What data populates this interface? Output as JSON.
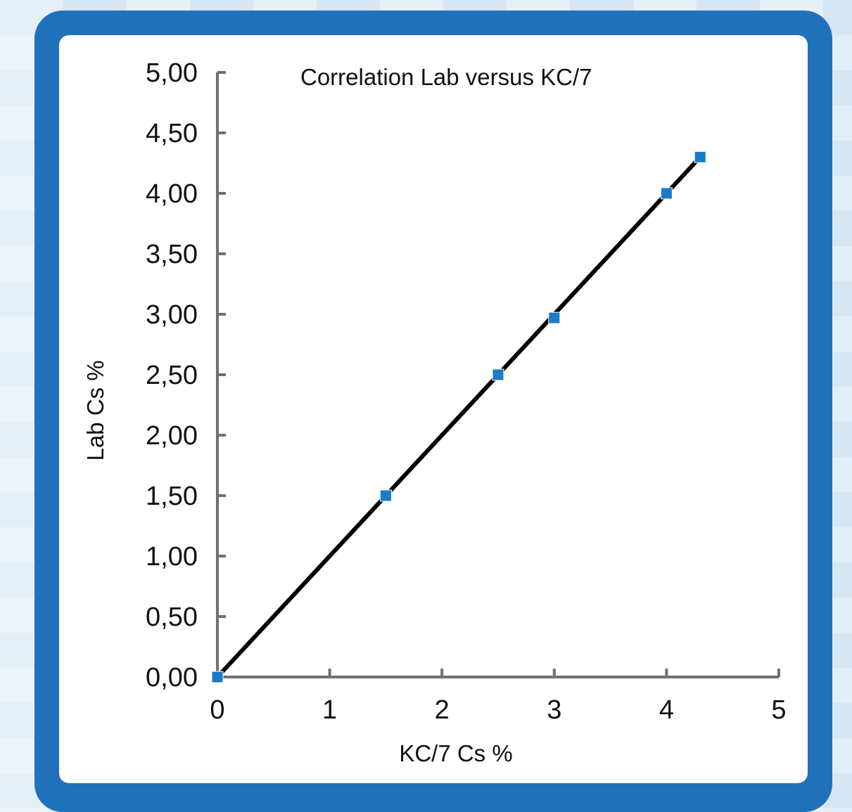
{
  "chart_data": {
    "type": "scatter",
    "title": "Correlation Lab versus KC/7",
    "xlabel": "KC/7 Cs %",
    "ylabel": "Lab Cs %",
    "xlim": [
      0,
      5
    ],
    "ylim": [
      0,
      5
    ],
    "xticks": [
      "0",
      "1",
      "2",
      "3",
      "4",
      "5"
    ],
    "yticks": [
      "0,00",
      "0,50",
      "1,00",
      "1,50",
      "2,00",
      "2,50",
      "3,00",
      "3,50",
      "4,00",
      "4,50",
      "5,00"
    ],
    "grid": false,
    "legend": "none",
    "series": [
      {
        "x": [
          0,
          1.5,
          2.5,
          3.0,
          4.0,
          4.3
        ],
        "y": [
          0,
          1.5,
          2.5,
          2.97,
          4.0,
          4.3
        ],
        "marker": "square",
        "color": "#1a7bc8"
      }
    ],
    "trendline": {
      "x": [
        0,
        4.3
      ],
      "y": [
        0,
        4.3
      ],
      "color": "#000000"
    }
  },
  "colors": {
    "frame": "#1f72ba",
    "axis": "#707070"
  }
}
